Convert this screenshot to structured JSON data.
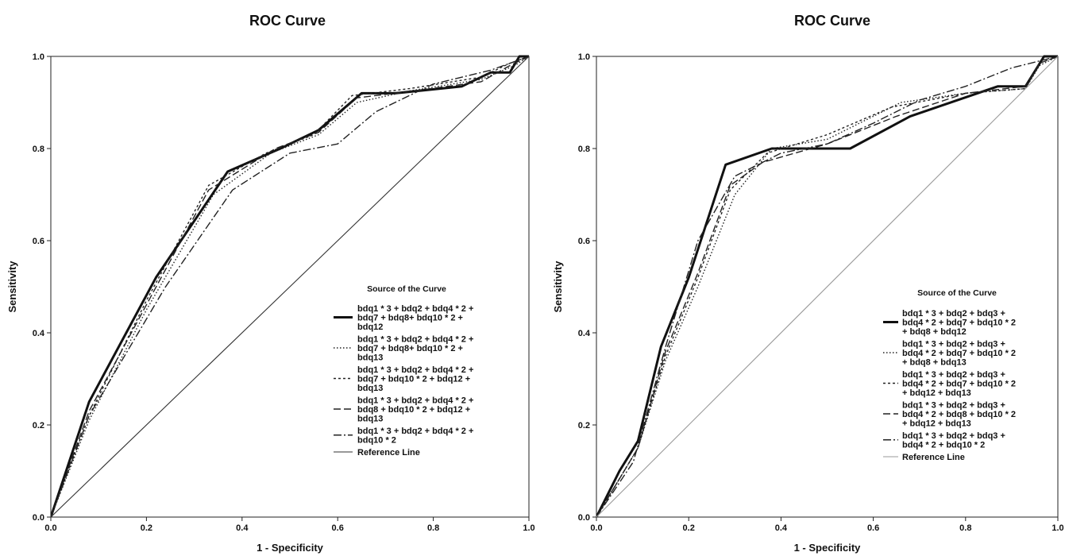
{
  "chart_data": [
    {
      "type": "line",
      "title": "ROC Curve",
      "xlabel": "1 - Specificity",
      "ylabel": "Sensitivity",
      "xlim": [
        0,
        1
      ],
      "ylim": [
        0,
        1
      ],
      "xticks": [
        "0.0",
        "0.2",
        "0.4",
        "0.6",
        "0.8",
        "1.0"
      ],
      "yticks": [
        "0.0",
        "0.2",
        "0.4",
        "0.6",
        "0.8",
        "1.0"
      ],
      "grid": false,
      "legend_title": "Source of the Curve",
      "legend_position": "lower-right",
      "series": [
        {
          "name": "bdq1 * 3 + bdq2 + bdq4 * 2 + bdq7 + bdq8+ bdq10 * 2 + bdq12",
          "legend_lines": [
            "bdq1 * 3 + bdq2 + bdq4 * 2 +",
            "bdq7 + bdq8+ bdq10 * 2 +",
            "bdq12"
          ],
          "style": "thick-solid",
          "color": "#111111",
          "x": [
            0,
            0.08,
            0.22,
            0.37,
            0.48,
            0.56,
            0.65,
            0.72,
            0.86,
            0.92,
            0.96,
            0.98,
            1.0
          ],
          "y": [
            0,
            0.25,
            0.52,
            0.75,
            0.8,
            0.84,
            0.92,
            0.92,
            0.935,
            0.965,
            0.965,
            1.0,
            1.0
          ]
        },
        {
          "name": "bdq1 * 3 + bdq2 + bdq4 * 2 + bdq7 + bdq8+ bdq10 * 2 + bdq13",
          "legend_lines": [
            "bdq1 * 3 + bdq2 + bdq4 * 2 +",
            "bdq7 + bdq8+ bdq10 * 2 +",
            "bdq13"
          ],
          "style": "dotted",
          "color": "#222222",
          "x": [
            0,
            0.08,
            0.2,
            0.34,
            0.46,
            0.56,
            0.64,
            0.75,
            0.9,
            0.97,
            1.0
          ],
          "y": [
            0,
            0.21,
            0.45,
            0.7,
            0.79,
            0.83,
            0.9,
            0.925,
            0.95,
            0.98,
            1.0
          ]
        },
        {
          "name": "bdq1 * 3 + bdq2 + bdq4 * 2 + bdq7 + bdq10 * 2 + bdq12 + bdq13",
          "legend_lines": [
            "bdq1 * 3 + bdq2 + bdq4 * 2 +",
            "bdq7 + bdq10 * 2 + bdq12 +",
            "bdq13"
          ],
          "style": "small-dash",
          "color": "#222222",
          "x": [
            0,
            0.08,
            0.2,
            0.33,
            0.45,
            0.55,
            0.63,
            0.75,
            0.9,
            0.96,
            1.0
          ],
          "y": [
            0,
            0.22,
            0.47,
            0.72,
            0.79,
            0.83,
            0.915,
            0.93,
            0.955,
            0.985,
            1.0
          ]
        },
        {
          "name": "bdq1 * 3 + bdq2 + bdq4 * 2 + bdq8 + bdq10 * 2 + bdq12 + bdq13",
          "legend_lines": [
            "bdq1 * 3 + bdq2 + bdq4 * 2 +",
            "bdq8 + bdq10 * 2 + bdq12 +",
            "bdq13"
          ],
          "style": "long-dash",
          "color": "#222222",
          "x": [
            0,
            0.08,
            0.21,
            0.33,
            0.47,
            0.56,
            0.64,
            0.76,
            0.9,
            0.96,
            1.0
          ],
          "y": [
            0,
            0.23,
            0.48,
            0.71,
            0.8,
            0.835,
            0.91,
            0.925,
            0.945,
            0.98,
            1.0
          ]
        },
        {
          "name": "bdq1 * 3 + bdq2 + bdq4 * 2 + bdq10 * 2",
          "legend_lines": [
            "bdq1 * 3 + bdq2 + bdq4 * 2 +",
            "bdq10 * 2"
          ],
          "style": "dash-dot",
          "color": "#222222",
          "x": [
            0,
            0.08,
            0.24,
            0.38,
            0.5,
            0.6,
            0.68,
            0.8,
            0.92,
            1.0
          ],
          "y": [
            0,
            0.22,
            0.5,
            0.71,
            0.79,
            0.81,
            0.88,
            0.94,
            0.97,
            1.0
          ]
        },
        {
          "name": "Reference Line",
          "legend_lines": [
            "Reference Line"
          ],
          "style": "reference",
          "color": "#333333",
          "x": [
            0,
            1
          ],
          "y": [
            0,
            1
          ]
        }
      ]
    },
    {
      "type": "line",
      "title": "ROC Curve",
      "xlabel": "1 - Specificity",
      "ylabel": "Sensitivity",
      "xlim": [
        0,
        1
      ],
      "ylim": [
        0,
        1
      ],
      "xticks": [
        "0.0",
        "0.2",
        "0.4",
        "0.6",
        "0.8",
        "1.0"
      ],
      "yticks": [
        "0.0",
        "0.2",
        "0.4",
        "0.6",
        "0.8",
        "1.0"
      ],
      "grid": false,
      "legend_title": "Source of the Curve",
      "legend_position": "lower-right",
      "series": [
        {
          "name": "bdq1 * 3 + bdq2 + bdq3 + bdq4 * 2 + bdq7 + bdq10 * 2 + bdq8 + bdq12",
          "legend_lines": [
            "bdq1 * 3 + bdq2 + bdq3 +",
            "bdq4 * 2 + bdq7 + bdq10 * 2",
            "+ bdq8 + bdq12"
          ],
          "style": "thick-solid",
          "color": "#111111",
          "x": [
            0,
            0.05,
            0.09,
            0.14,
            0.2,
            0.28,
            0.38,
            0.55,
            0.68,
            0.87,
            0.93,
            0.97,
            1.0
          ],
          "y": [
            0,
            0.1,
            0.165,
            0.37,
            0.52,
            0.765,
            0.8,
            0.8,
            0.87,
            0.935,
            0.935,
            1.0,
            1.0
          ]
        },
        {
          "name": "bdq1 * 3 + bdq2 + bdq3 + bdq4 * 2 + bdq7 + bdq10 * 2 + bdq8 + bdq13",
          "legend_lines": [
            "bdq1 * 3 + bdq2 + bdq3 +",
            "bdq4 * 2 + bdq7 + bdq10 * 2",
            "+ bdq8 + bdq13"
          ],
          "style": "dotted",
          "color": "#222222",
          "x": [
            0,
            0.09,
            0.15,
            0.22,
            0.3,
            0.38,
            0.5,
            0.66,
            0.8,
            0.93,
            0.96,
            1.0
          ],
          "y": [
            0,
            0.15,
            0.34,
            0.5,
            0.7,
            0.8,
            0.82,
            0.9,
            0.92,
            0.93,
            0.98,
            1.0
          ]
        },
        {
          "name": "bdq1 * 3 + bdq2 + bdq3 + bdq4 * 2 + bdq7 + bdq10 * 2 + bdq12 + bdq13",
          "legend_lines": [
            "bdq1 * 3 + bdq2 + bdq3 +",
            "bdq4 * 2 + bdq7 + bdq10 * 2",
            "+ bdq12 + bdq13"
          ],
          "style": "small-dash",
          "color": "#222222",
          "x": [
            0,
            0.09,
            0.15,
            0.22,
            0.29,
            0.37,
            0.5,
            0.64,
            0.8,
            0.93,
            0.96,
            1.0
          ],
          "y": [
            0,
            0.15,
            0.35,
            0.52,
            0.71,
            0.79,
            0.83,
            0.89,
            0.92,
            0.93,
            0.985,
            1.0
          ]
        },
        {
          "name": "bdq1 * 3 + bdq2 + bdq3 + bdq4 * 2 + bdq8 + bdq10 * 2 + bdq12 + bdq13",
          "legend_lines": [
            "bdq1 * 3 + bdq2 + bdq3 +",
            "bdq4 * 2 + bdq8 + bdq10 * 2",
            "+ bdq12 + bdq13"
          ],
          "style": "long-dash",
          "color": "#222222",
          "x": [
            0,
            0.09,
            0.15,
            0.22,
            0.29,
            0.36,
            0.5,
            0.65,
            0.8,
            0.93,
            0.96,
            1.0
          ],
          "y": [
            0,
            0.15,
            0.36,
            0.53,
            0.72,
            0.77,
            0.81,
            0.87,
            0.92,
            0.935,
            0.985,
            1.0
          ]
        },
        {
          "name": "bdq1 * 3 + bdq2 + bdq3 + bdq4 * 2 + bdq10 * 2",
          "legend_lines": [
            "bdq1 * 3 + bdq2 + bdq3 +",
            "bdq4 * 2 + bdq10 * 2"
          ],
          "style": "dash-dot",
          "color": "#222222",
          "x": [
            0,
            0.08,
            0.15,
            0.22,
            0.3,
            0.4,
            0.5,
            0.6,
            0.7,
            0.8,
            0.9,
            1.0
          ],
          "y": [
            0,
            0.12,
            0.37,
            0.6,
            0.74,
            0.79,
            0.81,
            0.855,
            0.905,
            0.935,
            0.975,
            1.0
          ]
        },
        {
          "name": "Reference Line",
          "legend_lines": [
            "Reference Line"
          ],
          "style": "reference",
          "color": "#999999",
          "x": [
            0,
            1
          ],
          "y": [
            0,
            1
          ]
        }
      ]
    }
  ]
}
